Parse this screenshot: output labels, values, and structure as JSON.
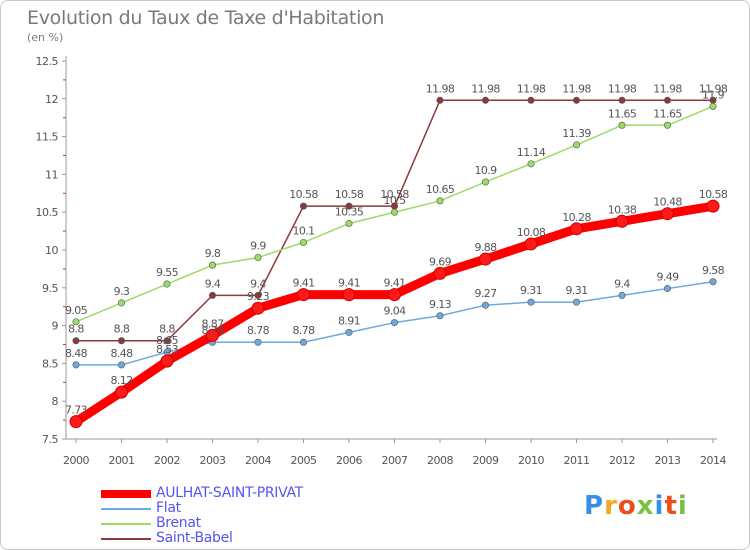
{
  "header": {
    "title": "Evolution du Taux de Taxe d'Habitation",
    "unit": "(en %)"
  },
  "logo": {
    "text": "Proxiti",
    "colors": [
      "#3a8ee6",
      "#f5a623",
      "#e94e1b",
      "#7ac143",
      "#3a8ee6",
      "#e94e1b",
      "#7ac143"
    ]
  },
  "chart_data": {
    "type": "line",
    "x": [
      "2000",
      "2001",
      "2002",
      "2003",
      "2004",
      "2005",
      "2006",
      "2007",
      "2008",
      "2009",
      "2010",
      "2011",
      "2012",
      "2013",
      "2014"
    ],
    "ylim": [
      7.5,
      12.5
    ],
    "yticks": [
      "7.5",
      "8",
      "8.5",
      "9",
      "9.5",
      "10",
      "10.5",
      "11",
      "11.5",
      "12",
      "12.5"
    ],
    "grid": false,
    "legend_position": "bottom-left",
    "series": [
      {
        "name": "AULHAT-SAINT-PRIVAT",
        "color": "#ff0000",
        "width": 9,
        "values": [
          7.73,
          8.12,
          8.53,
          8.87,
          9.23,
          9.41,
          9.41,
          9.41,
          9.69,
          9.88,
          10.08,
          10.28,
          10.38,
          10.48,
          10.58
        ],
        "labels": [
          "7.73",
          "8.12",
          "8.53",
          "8.87",
          "9.23",
          "9.41",
          "9.41",
          "9.41",
          "9.69",
          "9.88",
          "10.08",
          "10.28",
          "10.38",
          "10.48",
          "10.58"
        ]
      },
      {
        "name": "Flat",
        "color": "#6fa8dc",
        "width": 1.5,
        "values": [
          8.48,
          8.48,
          8.65,
          8.78,
          8.78,
          8.78,
          8.91,
          9.04,
          9.13,
          9.27,
          9.31,
          9.31,
          9.4,
          9.49,
          9.58
        ],
        "labels": [
          "8.48",
          "8.48",
          "8.65",
          "8.78",
          "8.78",
          "8.78",
          "8.91",
          "9.04",
          "9.13",
          "9.27",
          "9.31",
          "9.31",
          "9.4",
          "9.49",
          "9.58"
        ]
      },
      {
        "name": "Brenat",
        "color": "#99dd66",
        "width": 1.5,
        "values": [
          9.05,
          9.3,
          9.55,
          9.8,
          9.9,
          10.1,
          10.35,
          10.5,
          10.65,
          10.9,
          11.14,
          11.39,
          11.65,
          11.65,
          11.9
        ],
        "labels": [
          "9.05",
          "9.3",
          "9.55",
          "9.8",
          "9.9",
          "10.1",
          "10.35",
          "10.5",
          "10.65",
          "10.9",
          "11.14",
          "11.39",
          "11.65",
          "11.65",
          "11.9"
        ]
      },
      {
        "name": "Saint-Babel",
        "color": "#8b3a3a",
        "width": 1.5,
        "values": [
          8.8,
          8.8,
          8.8,
          9.4,
          9.4,
          10.58,
          10.58,
          10.58,
          11.98,
          11.98,
          11.98,
          11.98,
          11.98,
          11.98,
          11.98
        ],
        "labels": [
          "8.8",
          "8.8",
          "8.8",
          "9.4",
          "9.4",
          "10.58",
          "10.58",
          "10.58",
          "11.98",
          "11.98",
          "11.98",
          "11.98",
          "11.98",
          "11.98",
          "11.98"
        ]
      }
    ]
  }
}
